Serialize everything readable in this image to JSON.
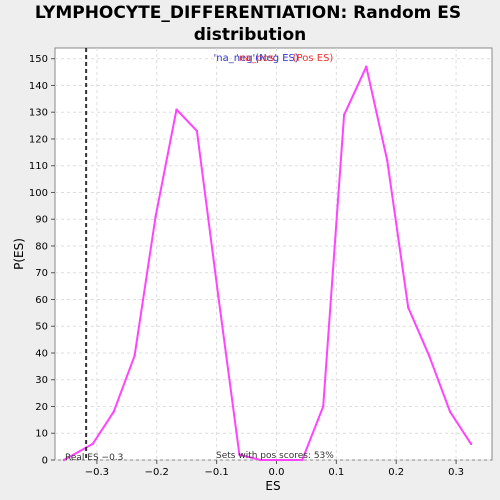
{
  "colors": {
    "background": "#eeeeee",
    "plot_background": "#ffffff",
    "series": "#ff44ff",
    "legend_neg": "#3333cc",
    "legend_pos": "#ee3333",
    "grid": "#dddddd",
    "real_es_line": "#333333"
  },
  "chart_data": {
    "type": "line",
    "title_line1": "LYMPHOCYTE_DIFFERENTIATION: Random ES",
    "title_line2": "distribution",
    "xlabel": "ES",
    "ylabel": "P(ES)",
    "xlim": [
      -0.37,
      0.36
    ],
    "ylim": [
      0,
      154
    ],
    "grid": true,
    "legend": {
      "position": "top-center",
      "items": [
        {
          "text": "'na_neg'",
          "color": "#3333cc"
        },
        {
          "text": "(Neg ES)",
          "color": "#3333cc"
        },
        {
          "text": "'na_pos'",
          "color": "#ee3333"
        },
        {
          "text": "(Pos ES)",
          "color": "#ee3333"
        }
      ]
    },
    "x_ticks": [
      -0.3,
      -0.2,
      -0.1,
      0.0,
      0.1,
      0.2,
      0.3
    ],
    "x_tick_labels": [
      "−0.3",
      "−0.2",
      "−0.1",
      "0.0",
      "0.1",
      "0.2",
      "0.3"
    ],
    "y_ticks": [
      0,
      10,
      20,
      30,
      40,
      50,
      60,
      70,
      80,
      90,
      100,
      110,
      120,
      130,
      140,
      150
    ],
    "series": [
      {
        "x": [
          -0.355,
          -0.307,
          -0.272,
          -0.237,
          -0.202,
          -0.167,
          -0.133,
          -0.097,
          -0.062,
          -0.027,
          0.008,
          0.043,
          0.078,
          0.113,
          0.15,
          0.185,
          0.22,
          0.255,
          0.29,
          0.325
        ],
        "values": [
          0,
          6,
          18,
          39,
          91,
          131,
          123,
          61,
          2,
          0,
          0,
          0,
          20,
          129,
          147,
          112,
          57,
          39,
          18,
          6
        ]
      }
    ],
    "real_es": {
      "value": -0.318,
      "label": "Real ES −0.3"
    },
    "annotation": "Sets with pos scores: 53%"
  }
}
